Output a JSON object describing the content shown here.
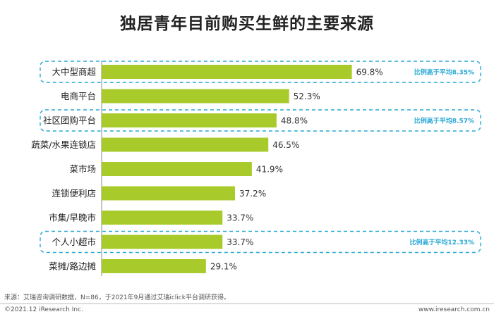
{
  "chart_data": {
    "type": "bar",
    "orientation": "horizontal",
    "title": "独居青年目前购买生鲜的主要来源",
    "categories": [
      "大中型商超",
      "电商平台",
      "社区团购平台",
      "蔬菜/水果连锁店",
      "菜市场",
      "连锁便利店",
      "市集/早晚市",
      "个人小超市",
      "菜摊/路边摊"
    ],
    "values": [
      69.8,
      52.3,
      48.8,
      46.5,
      41.9,
      37.2,
      33.7,
      33.7,
      29.1
    ],
    "value_labels": [
      "69.8%",
      "52.3%",
      "48.8%",
      "46.5%",
      "41.9%",
      "37.2%",
      "33.7%",
      "33.7%",
      "29.1%"
    ],
    "xlim": [
      0,
      100
    ],
    "grid": false,
    "bar_color": "#a8cb2b",
    "highlight_color": "#29a8d6",
    "annotations": [
      {
        "category_index": 0,
        "text": "比例高于平均8.35%"
      },
      {
        "category_index": 2,
        "text": "比例高于平均8.57%"
      },
      {
        "category_index": 7,
        "text": "比例高于平均12.33%"
      }
    ]
  },
  "footer": {
    "source": "来源：艾瑞咨询调研数据，N=86，于2021年9月通过艾瑞iclick平台调研获得。",
    "copyright": "©2021.12 iResearch Inc.",
    "website": "www.iresearch.com.cn"
  }
}
